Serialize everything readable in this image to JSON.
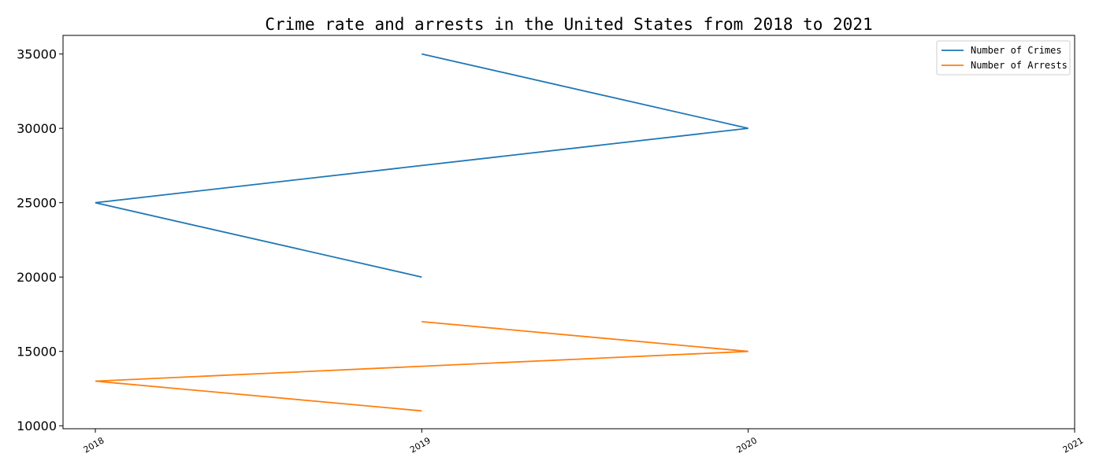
{
  "chart_data": {
    "type": "line",
    "title": "Crime rate and arrests in the United States from 2018 to 2021",
    "xlabel": "",
    "ylabel": "",
    "x_ticks": [
      "2018",
      "2019",
      "2020",
      "2021"
    ],
    "xlim": [
      2018,
      2021
    ],
    "y_ticks": [
      "10000",
      "15000",
      "20000",
      "25000",
      "30000",
      "35000"
    ],
    "ylim": [
      9800,
      36250
    ],
    "grid": false,
    "legend_position": "top-right",
    "series": [
      {
        "name": "Number of Crimes",
        "color": "#1f77b4",
        "points": [
          {
            "x": 2019,
            "y": 20000
          },
          {
            "x": 2018,
            "y": 25000
          },
          {
            "x": 2020,
            "y": 30000
          },
          {
            "x": 2019,
            "y": 35000
          }
        ]
      },
      {
        "name": "Number of Arrests",
        "color": "#ff7f0e",
        "points": [
          {
            "x": 2019,
            "y": 11000
          },
          {
            "x": 2018,
            "y": 13000
          },
          {
            "x": 2020,
            "y": 15000
          },
          {
            "x": 2019,
            "y": 17000
          }
        ]
      }
    ]
  }
}
